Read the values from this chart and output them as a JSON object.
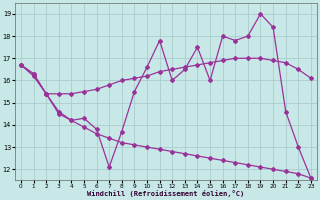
{
  "xlabel": "Windchill (Refroidissement éolien,°C)",
  "background_color": "#c8e8e8",
  "line_color": "#993399",
  "grid_color": "#aacccc",
  "x_ticks": [
    0,
    1,
    2,
    3,
    4,
    5,
    6,
    7,
    8,
    9,
    10,
    11,
    12,
    13,
    14,
    15,
    16,
    17,
    18,
    19,
    20,
    21,
    22,
    23
  ],
  "y_ticks": [
    12,
    13,
    14,
    15,
    16,
    17,
    18,
    19
  ],
  "ylim": [
    11.5,
    19.5
  ],
  "xlim": [
    -0.5,
    23.5
  ],
  "line1_y": [
    16.7,
    16.3,
    15.4,
    14.6,
    14.2,
    14.3,
    13.8,
    12.1,
    13.7,
    15.5,
    16.6,
    17.8,
    16.0,
    16.5,
    17.5,
    16.0,
    18.0,
    17.8,
    18.0,
    19.0,
    18.4,
    14.6,
    13.0,
    11.6
  ],
  "line2_y": [
    16.7,
    16.3,
    15.4,
    15.4,
    15.4,
    15.5,
    15.6,
    15.8,
    16.0,
    16.1,
    16.2,
    16.4,
    16.5,
    16.6,
    16.7,
    16.8,
    16.9,
    17.0,
    17.0,
    17.0,
    16.9,
    16.8,
    16.5,
    16.1
  ],
  "line3_y": [
    16.7,
    16.2,
    15.4,
    14.5,
    14.2,
    13.9,
    13.6,
    13.4,
    13.2,
    13.1,
    13.0,
    12.9,
    12.8,
    12.7,
    12.6,
    12.5,
    12.4,
    12.3,
    12.2,
    12.1,
    12.0,
    11.9,
    11.8,
    11.6
  ]
}
